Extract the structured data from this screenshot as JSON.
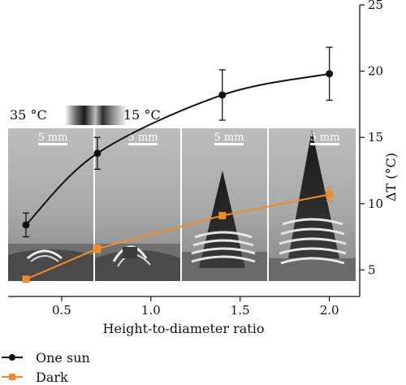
{
  "chart_data": {
    "type": "line",
    "xlabel": "Height-to-diameter ratio",
    "ylabel": "ΔT (°C)",
    "xlim": [
      0.2,
      2.17
    ],
    "ylim": [
      3,
      25
    ],
    "xticks": [
      0.5,
      1.0,
      1.5,
      2.0
    ],
    "xtick_labels": [
      "0.5",
      "1.0",
      "1.5",
      "2.0"
    ],
    "yticks": [
      5,
      10,
      15,
      20,
      25
    ],
    "ytick_labels": [
      "5",
      "10",
      "15",
      "20",
      "25"
    ],
    "grid": false,
    "legend_position": "bottom-left",
    "colorbar": {
      "high_label": "35 °C",
      "low_label": "15 °C"
    },
    "scale_bar_labels": [
      "5 mm",
      "5 mm",
      "5 mm",
      "5 mm"
    ],
    "series": [
      {
        "name": "One sun",
        "color": "#111111",
        "marker": "circle",
        "x": [
          0.3,
          0.7,
          1.4,
          2.0
        ],
        "y": [
          8.4,
          13.8,
          18.2,
          19.8
        ],
        "err": [
          0.9,
          1.2,
          1.9,
          2.0
        ]
      },
      {
        "name": "Dark",
        "color": "#f08a2a",
        "marker": "square",
        "x": [
          0.3,
          0.7,
          1.4,
          2.0
        ],
        "y": [
          4.3,
          6.6,
          9.1,
          10.7
        ],
        "err": [
          0.2,
          0.3,
          0.2,
          0.5
        ]
      }
    ]
  }
}
